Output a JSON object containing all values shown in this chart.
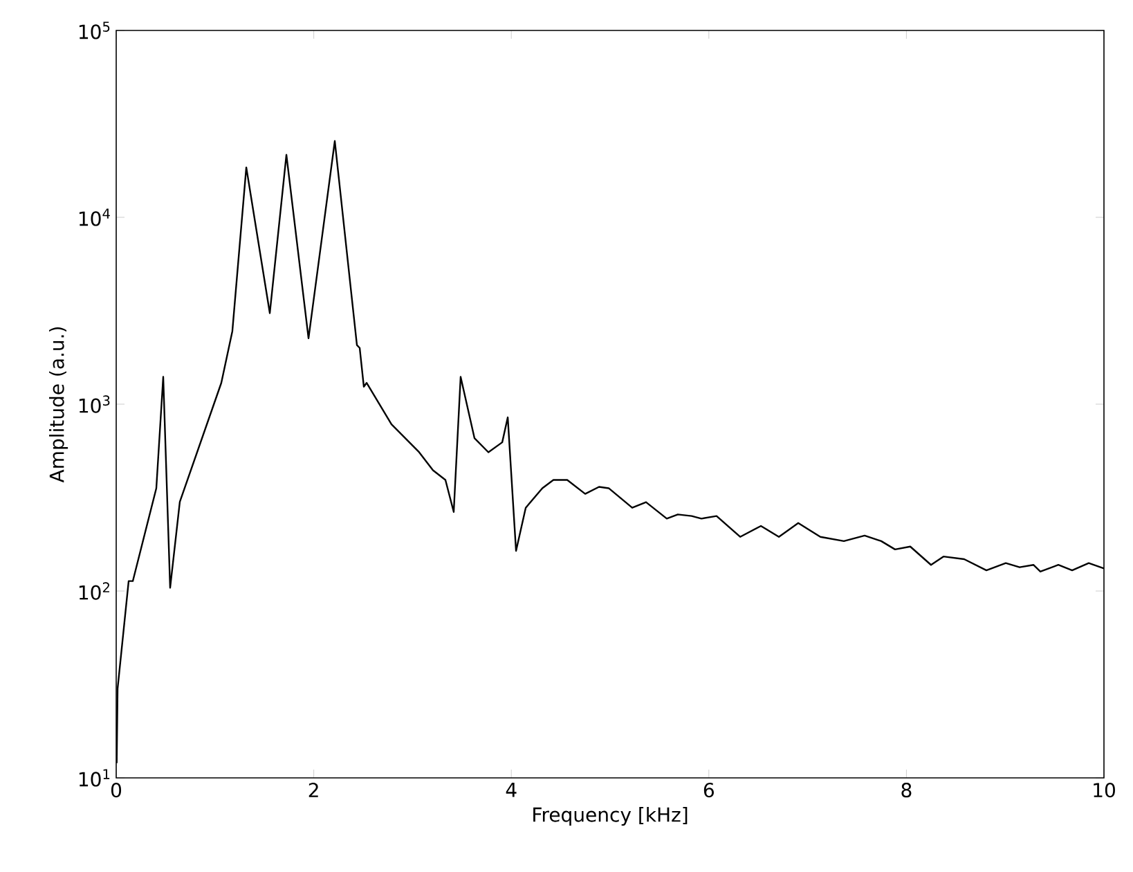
{
  "chart_data": {
    "type": "line",
    "xlabel": "Frequency [kHz]",
    "ylabel": "Amplitude (a.u.)",
    "log": "y",
    "xlim": [
      0,
      10
    ],
    "ylim": [
      10,
      100000
    ],
    "xticks": [
      0,
      2,
      4,
      6,
      8,
      10
    ],
    "yticks": [
      {
        "value": 10,
        "label": "10$^{1}$"
      },
      {
        "value": 100,
        "label": "10$^{2}$"
      },
      {
        "value": 1000,
        "label": "10$^{3}$"
      },
      {
        "value": 10000,
        "label": "10$^{4}$"
      },
      {
        "value": 100000,
        "label": "10$^{5}$"
      }
    ],
    "series": [
      {
        "color": "#000000",
        "x": [
          0.005,
          0.014,
          0.126,
          0.168,
          0.406,
          0.476,
          0.546,
          0.644,
          1.064,
          1.176,
          1.317,
          1.555,
          1.723,
          1.947,
          2.213,
          2.437,
          2.465,
          2.507,
          2.535,
          2.787,
          3.067,
          3.207,
          3.333,
          3.417,
          3.487,
          3.627,
          3.768,
          3.908,
          3.964,
          4.048,
          4.146,
          4.314,
          4.426,
          4.566,
          4.748,
          4.888,
          4.986,
          5.224,
          5.364,
          5.574,
          5.686,
          5.826,
          5.924,
          6.078,
          6.317,
          6.527,
          6.709,
          6.905,
          7.129,
          7.367,
          7.577,
          7.745,
          7.885,
          8.039,
          8.249,
          8.375,
          8.585,
          8.81,
          9.006,
          9.146,
          9.286,
          9.356,
          9.538,
          9.678,
          9.846,
          10.0
        ],
        "values": [
          12,
          30,
          113,
          113,
          355,
          1400,
          104,
          300,
          1300,
          2460,
          18500,
          3070,
          21600,
          2250,
          25600,
          2070,
          2000,
          1240,
          1300,
          780,
          553,
          443,
          393,
          265,
          1400,
          658,
          553,
          625,
          850,
          164,
          279,
          355,
          393,
          393,
          331,
          361,
          355,
          279,
          299,
          244,
          257,
          252,
          244,
          252,
          195,
          223,
          195,
          231,
          195,
          185,
          198,
          185,
          167,
          173,
          138,
          153,
          148,
          129,
          141,
          134,
          138,
          127,
          138,
          129,
          141,
          132
        ]
      }
    ]
  }
}
